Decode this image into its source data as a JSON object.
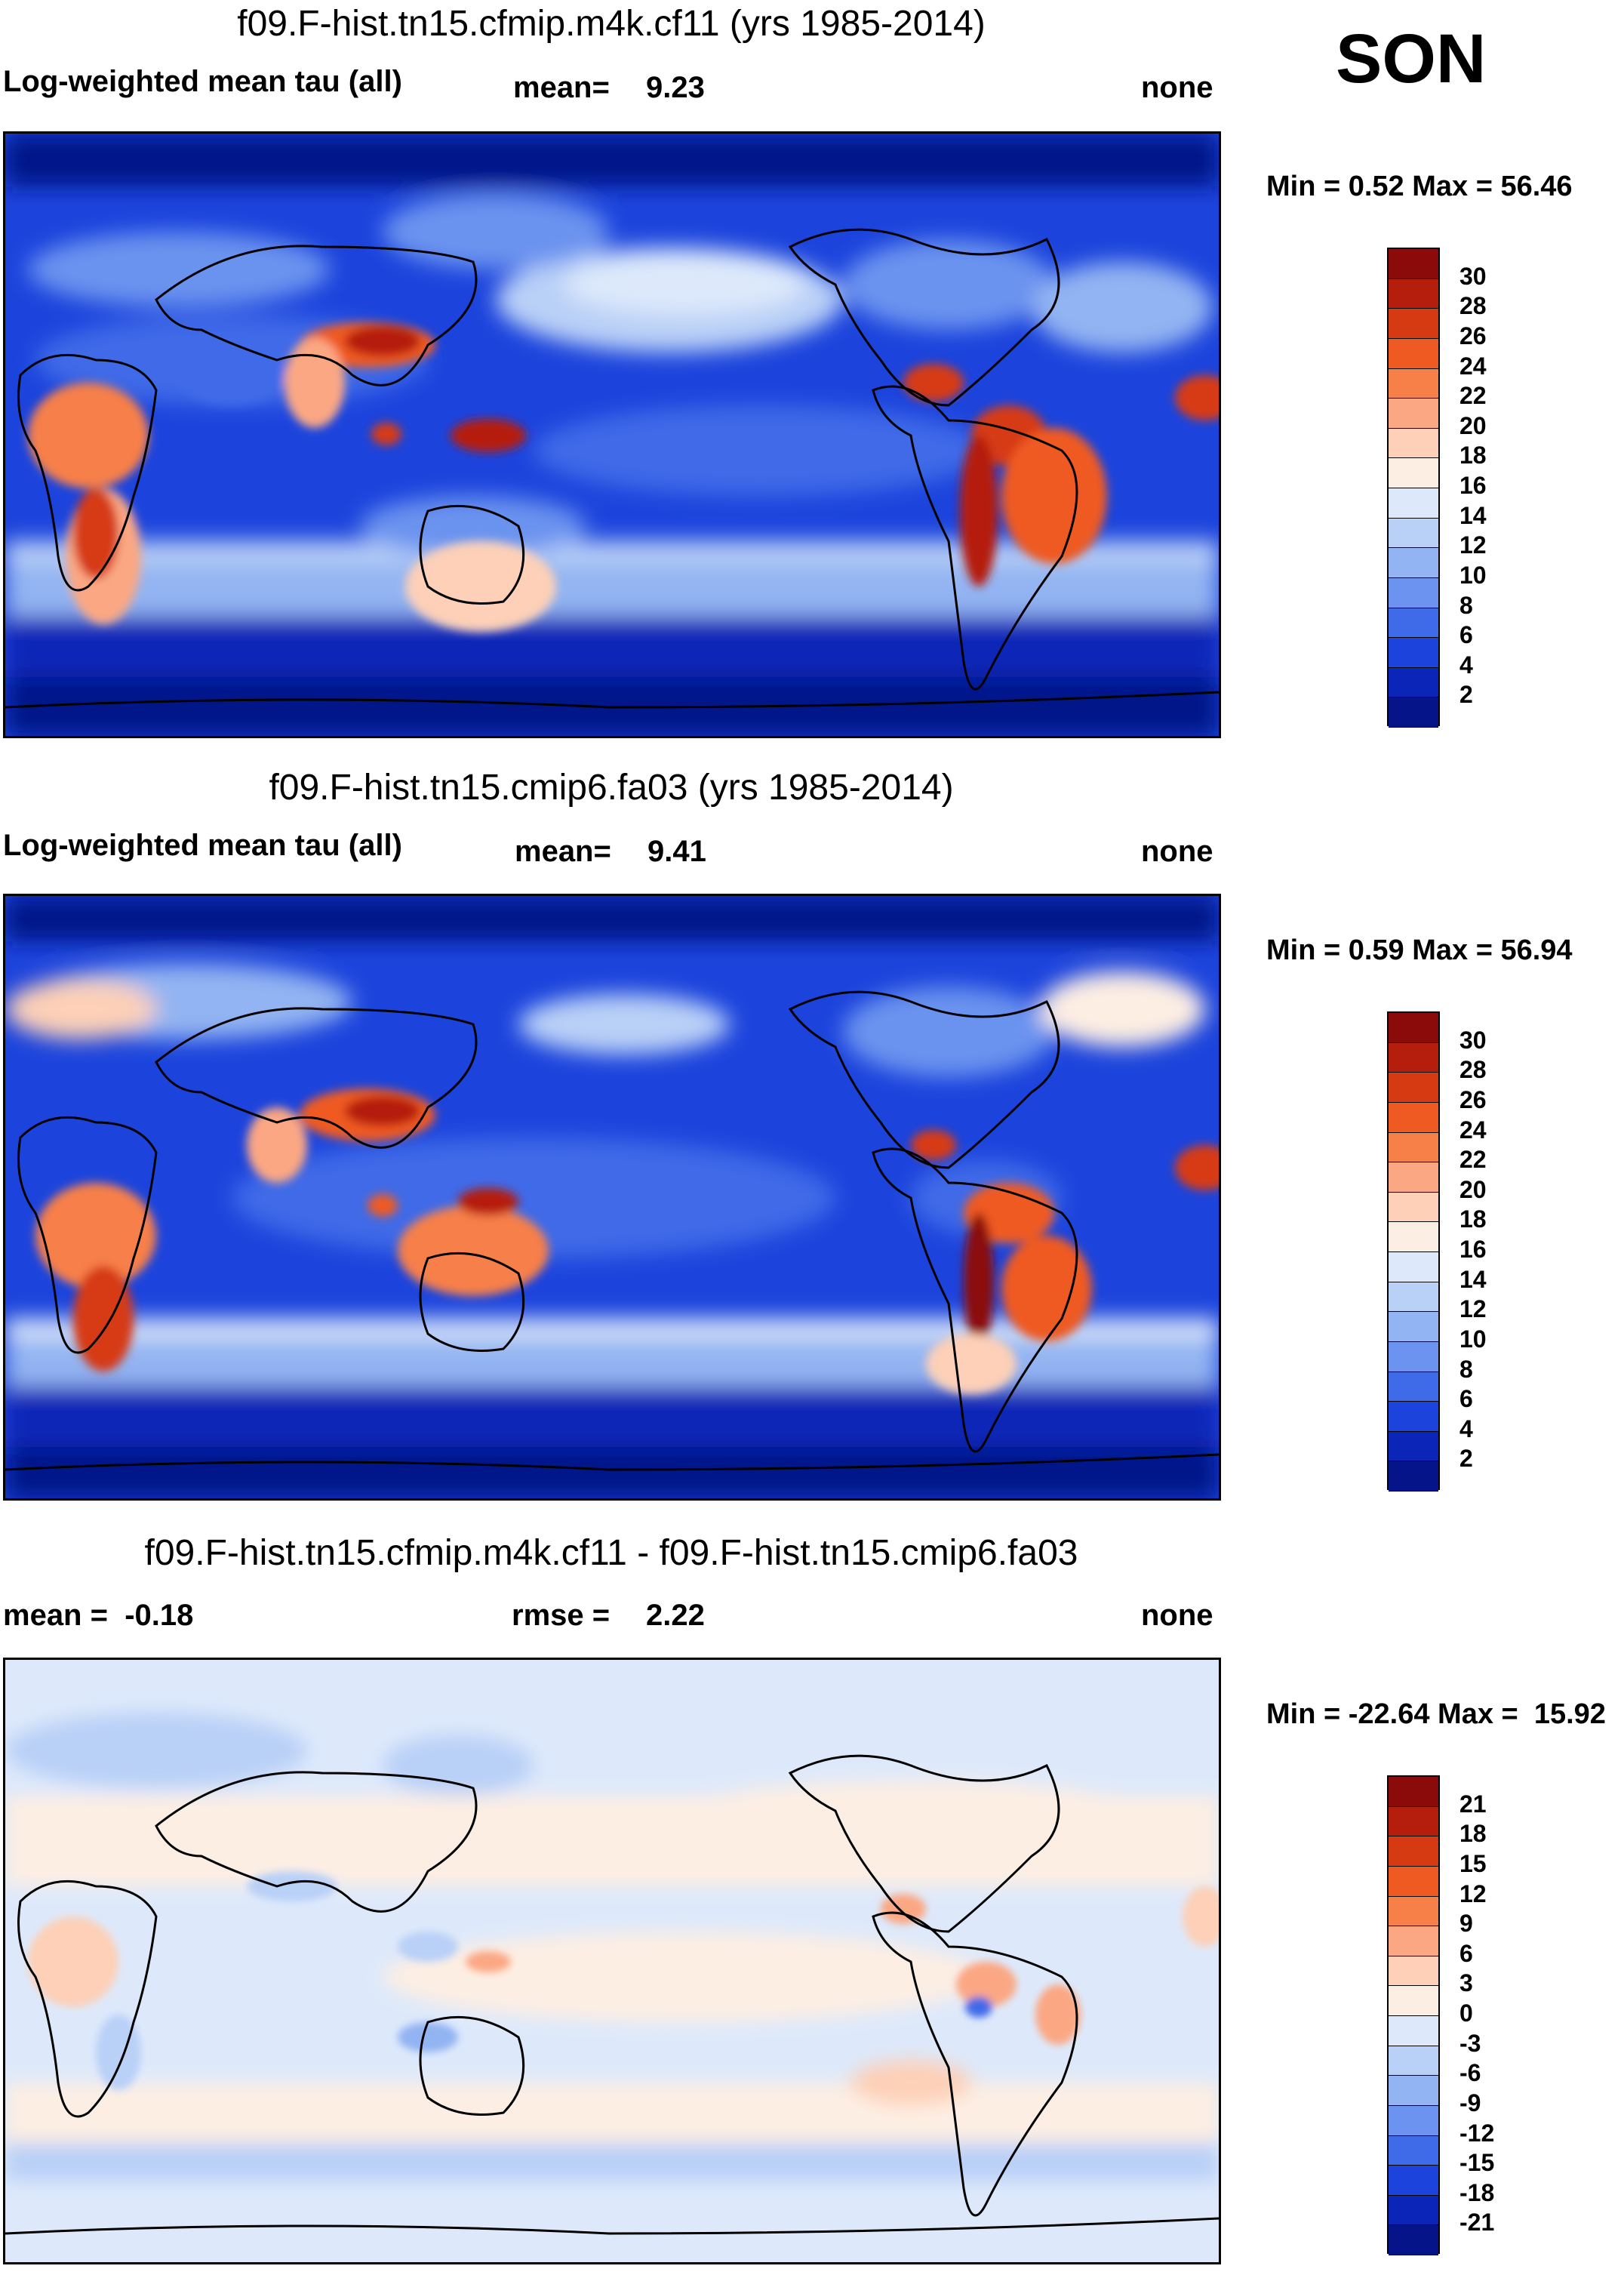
{
  "season": "SON",
  "panels": [
    {
      "title": "f09.F-hist.tn15.cfmip.m4k.cf11 (yrs 1985-2014)",
      "left_label": "Log-weighted mean tau (all)",
      "center_label": "mean=",
      "center_value": "9.23",
      "right_label": "none",
      "minmax": "Min =   0.52 Max =  56.46",
      "colorbar": {
        "labels": [
          "30",
          "28",
          "26",
          "24",
          "22",
          "20",
          "18",
          "16",
          "14",
          "12",
          "10",
          "8",
          "6",
          "4",
          "2"
        ],
        "colors": [
          "#8b0a0a",
          "#b51d0c",
          "#d63a12",
          "#ef5a23",
          "#f77f48",
          "#fba783",
          "#fdd0b7",
          "#fdeee3",
          "#dde9fb",
          "#b9d0f7",
          "#93b4f2",
          "#6b93ef",
          "#3f6ae8",
          "#1c44dc",
          "#0a25b8",
          "#061489"
        ]
      }
    },
    {
      "title": "f09.F-hist.tn15.cmip6.fa03 (yrs 1985-2014)",
      "left_label": "Log-weighted mean tau (all)",
      "center_label": "mean=",
      "center_value": "9.41",
      "right_label": "none",
      "minmax": "Min =   0.59 Max =  56.94",
      "colorbar": {
        "labels": [
          "30",
          "28",
          "26",
          "24",
          "22",
          "20",
          "18",
          "16",
          "14",
          "12",
          "10",
          "8",
          "6",
          "4",
          "2"
        ],
        "colors": [
          "#8b0a0a",
          "#b51d0c",
          "#d63a12",
          "#ef5a23",
          "#f77f48",
          "#fba783",
          "#fdd0b7",
          "#fdeee3",
          "#dde9fb",
          "#b9d0f7",
          "#93b4f2",
          "#6b93ef",
          "#3f6ae8",
          "#1c44dc",
          "#0a25b8",
          "#061489"
        ]
      }
    },
    {
      "title": "f09.F-hist.tn15.cfmip.m4k.cf11 - f09.F-hist.tn15.cmip6.fa03",
      "left_label": "mean =  -0.18",
      "center_label": "rmse =",
      "center_value": "2.22",
      "right_label": "none",
      "minmax": "Min = -22.64 Max =  15.92",
      "colorbar": {
        "labels": [
          "21",
          "18",
          "15",
          "12",
          "9",
          "6",
          "3",
          "0",
          "-3",
          "-6",
          "-9",
          "-12",
          "-15",
          "-18",
          "-21"
        ],
        "colors": [
          "#8b0a0a",
          "#b51d0c",
          "#d63a12",
          "#ef5a23",
          "#f77f48",
          "#fba783",
          "#fdd0b7",
          "#fdeee3",
          "#dde9fb",
          "#b9d0f7",
          "#93b4f2",
          "#6b93ef",
          "#3f6ae8",
          "#1c44dc",
          "#0a25b8",
          "#061489"
        ]
      }
    }
  ]
}
